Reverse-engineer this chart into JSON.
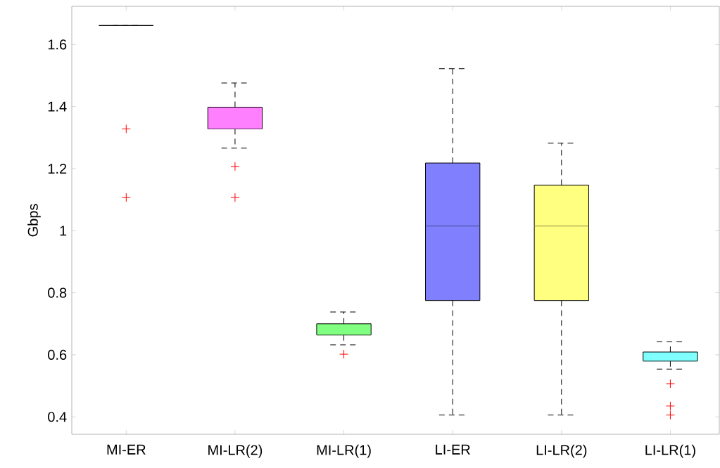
{
  "chart_data": {
    "type": "box",
    "ylabel": "Gbps",
    "categories": [
      "MI-ER",
      "MI-LR(2)",
      "MI-LR(1)",
      "LI-ER",
      "LI-LR(2)",
      "LI-LR(1)"
    ],
    "colors": [
      "#000000",
      "#ff80ff",
      "#80ff80",
      "#8080ff",
      "#ffff80",
      "#80ffff"
    ],
    "boxes": [
      {
        "low": 1.661,
        "q1": 1.661,
        "median": 1.661,
        "q3": 1.661,
        "high": 1.661,
        "outliers": [
          1.328,
          1.107
        ]
      },
      {
        "low": 1.266,
        "q1": 1.328,
        "median": 1.328,
        "q3": 1.398,
        "high": 1.476,
        "outliers": [
          1.207,
          1.107
        ]
      },
      {
        "low": 0.632,
        "q1": 0.664,
        "median": 0.664,
        "q3": 0.7,
        "high": 0.738,
        "outliers": [
          0.602
        ]
      },
      {
        "low": 0.406,
        "q1": 0.775,
        "median": 1.015,
        "q3": 1.218,
        "high": 1.522
      },
      {
        "low": 0.406,
        "q1": 0.775,
        "median": 1.015,
        "q3": 1.147,
        "high": 1.282
      },
      {
        "low": 0.554,
        "q1": 0.58,
        "median": 0.58,
        "q3": 0.609,
        "high": 0.642,
        "outliers": [
          0.507,
          0.435,
          0.406
        ]
      }
    ],
    "ylim": [
      0.344,
      1.723
    ],
    "yticks": [
      0.4,
      0.6,
      0.8,
      1,
      1.2,
      1.4,
      1.6
    ],
    "marker": "cross",
    "line_style": "dashed"
  }
}
